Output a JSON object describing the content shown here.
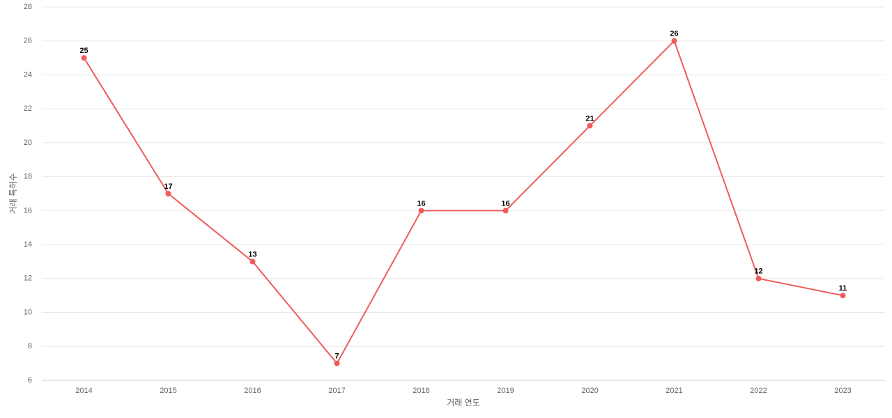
{
  "chart_data": {
    "type": "line",
    "x_label": "거래 연도",
    "y_label": "거래 특허수",
    "categories": [
      "2014",
      "2015",
      "2016",
      "2017",
      "2018",
      "2019",
      "2020",
      "2021",
      "2022",
      "2023"
    ],
    "values": [
      25,
      17,
      13,
      7,
      16,
      16,
      21,
      26,
      12,
      11
    ],
    "color": "#ef5b5b",
    "ylim": [
      6,
      28
    ],
    "yticks": [
      6,
      8,
      10,
      12,
      14,
      16,
      18,
      20,
      22,
      24,
      26,
      28
    ],
    "grid": true
  }
}
